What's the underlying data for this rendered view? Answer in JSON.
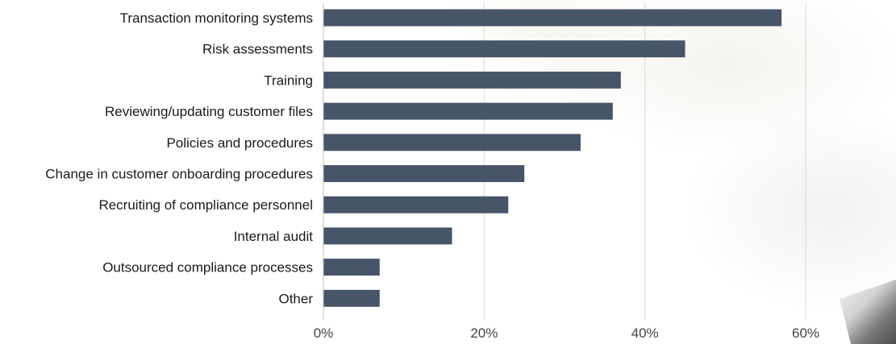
{
  "chart_data": {
    "type": "bar",
    "orientation": "horizontal",
    "categories": [
      "Transaction monitoring systems",
      "Risk assessments",
      "Training",
      "Reviewing/updating customer files",
      "Policies and procedures",
      "Change in customer onboarding procedures",
      "Recruiting of compliance personnel",
      "Internal audit",
      "Outsourced compliance processes",
      "Other"
    ],
    "values": [
      57,
      45,
      37,
      36,
      32,
      25,
      23,
      16,
      7,
      7
    ],
    "xlim": [
      0,
      60
    ],
    "xticks": [
      0,
      20,
      40,
      60
    ],
    "xtick_labels": [
      "0%",
      "20%",
      "40%",
      "60%"
    ],
    "grid": "vertical",
    "bar_color": "#475569"
  }
}
